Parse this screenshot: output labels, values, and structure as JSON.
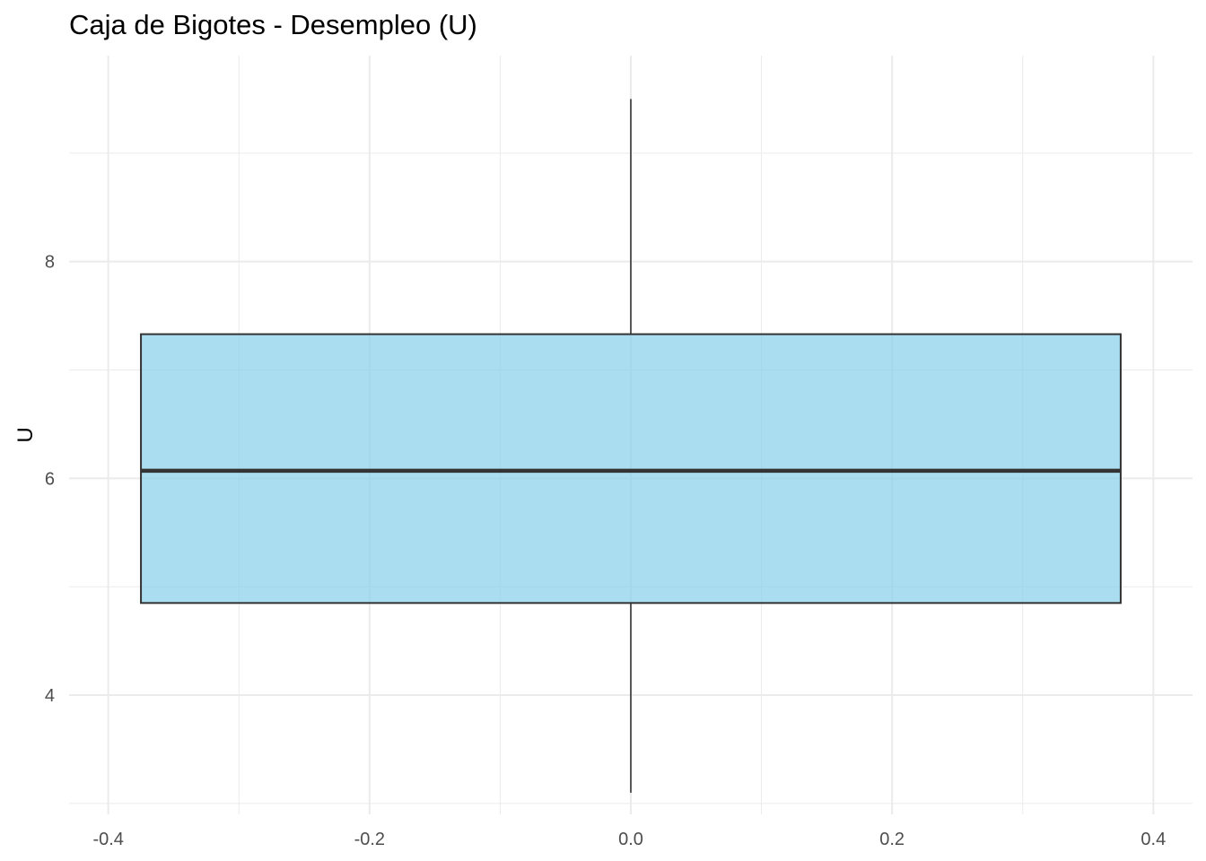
{
  "chart_data": {
    "type": "boxplot",
    "title": "Caja de Bigotes - Desempleo (U)",
    "xlabel": "",
    "ylabel": "U",
    "xlim": [
      -0.43,
      0.43
    ],
    "ylim": [
      2.9,
      9.9
    ],
    "x_ticks": [
      -0.4,
      -0.2,
      0.0,
      0.2,
      0.4
    ],
    "x_tick_labels": [
      "-0.4",
      "-0.2",
      "0.0",
      "0.2",
      "0.4"
    ],
    "y_ticks": [
      4,
      6,
      8
    ],
    "y_tick_labels": [
      "4",
      "6",
      "8"
    ],
    "grid": true,
    "box": {
      "x_left": -0.375,
      "x_right": 0.375,
      "x_center": 0.0,
      "min": 3.1,
      "q1": 4.85,
      "median": 6.07,
      "q3": 7.33,
      "max": 9.5
    },
    "colors": {
      "fill": "#87CEEB",
      "fill_opacity": 0.7,
      "outline": "#333333",
      "grid": "#ebebeb"
    }
  }
}
